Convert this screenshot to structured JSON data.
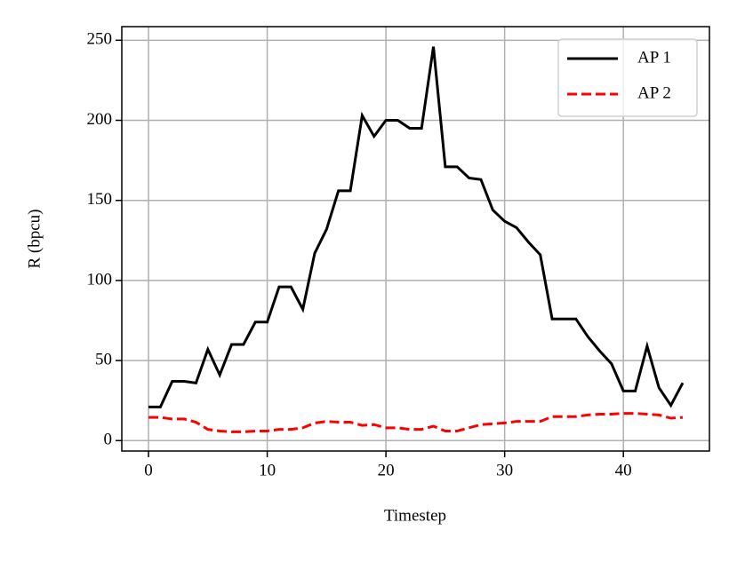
{
  "chart_data": {
    "type": "line",
    "x_label": "Timestep",
    "y_label": "R (bpcu)",
    "x": [
      0,
      1,
      2,
      3,
      4,
      5,
      6,
      7,
      8,
      9,
      10,
      11,
      12,
      13,
      14,
      15,
      16,
      17,
      18,
      19,
      20,
      21,
      22,
      23,
      24,
      25,
      26,
      27,
      28,
      29,
      30,
      31,
      32,
      33,
      34,
      35,
      36,
      37,
      38,
      39,
      40,
      41,
      42,
      43,
      44,
      45
    ],
    "series": [
      {
        "name": "AP 1",
        "color": "#000000",
        "dash": "solid",
        "values": [
          21,
          21,
          37,
          37,
          36,
          57,
          41,
          60,
          60,
          74,
          74,
          96,
          96,
          82,
          117,
          132,
          156,
          156,
          203,
          190,
          200,
          200,
          195,
          195,
          246,
          171,
          171,
          164,
          163,
          144,
          137,
          133,
          124,
          116,
          76,
          76,
          76,
          65,
          56,
          48,
          31,
          31,
          59,
          33,
          22,
          36
        ]
      },
      {
        "name": "AP 2",
        "color": "#ff0000",
        "dash": "dashed",
        "values": [
          14.5,
          14.5,
          13.5,
          13.5,
          11.5,
          7,
          6,
          5.5,
          5.5,
          6,
          6,
          7,
          7,
          8,
          11,
          12,
          11.5,
          11.5,
          9.5,
          10,
          8,
          8,
          7,
          7,
          9,
          6,
          6,
          8,
          10,
          10.5,
          11,
          12,
          12,
          12,
          15,
          15,
          15,
          16,
          16.5,
          16.5,
          17,
          17,
          16.5,
          16,
          14,
          14.5
        ]
      }
    ],
    "xlim": [
      -2.25,
      47.25
    ],
    "ylim": [
      -6.5,
      258.5
    ],
    "xticks": [
      0,
      10,
      20,
      30,
      40
    ],
    "yticks": [
      0,
      50,
      100,
      150,
      200,
      250
    ],
    "grid": true,
    "legend": "upper right"
  }
}
